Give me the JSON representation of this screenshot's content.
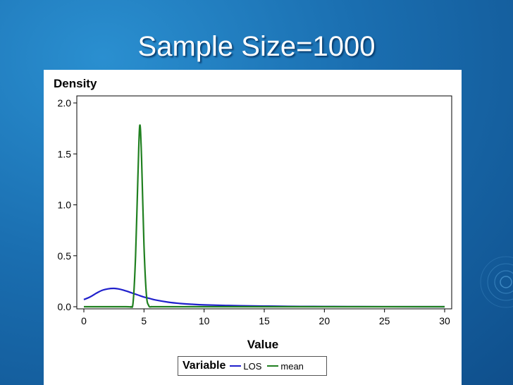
{
  "slide": {
    "title": "Sample Size=1000"
  },
  "chart_data": {
    "type": "line",
    "title": "",
    "ylabel": "Density",
    "xlabel": "Value",
    "xlim": [
      0,
      30
    ],
    "ylim": [
      0,
      2.0
    ],
    "xticks": [
      "0",
      "5",
      "10",
      "15",
      "20",
      "25",
      "30"
    ],
    "yticks": [
      "0.0",
      "0.5",
      "1.0",
      "1.5",
      "2.0"
    ],
    "grid": false,
    "legend_title": "Variable",
    "legend_position": "bottom",
    "series": [
      {
        "name": "LOS",
        "color": "#2020cc",
        "x": [
          0,
          0.5,
          1,
          1.5,
          2,
          2.5,
          3,
          3.5,
          4,
          4.5,
          5,
          5.5,
          6,
          7,
          8,
          9,
          10,
          12,
          14,
          16,
          18,
          20,
          22,
          25,
          28,
          30
        ],
        "y": [
          0.07,
          0.095,
          0.13,
          0.16,
          0.175,
          0.18,
          0.172,
          0.155,
          0.135,
          0.115,
          0.095,
          0.08,
          0.065,
          0.045,
          0.032,
          0.024,
          0.018,
          0.012,
          0.008,
          0.005,
          0.003,
          0.002,
          0.001,
          0.0005,
          0.0002,
          0.0001
        ]
      },
      {
        "name": "mean",
        "color": "#208020",
        "x": [
          0,
          3.5,
          3.9,
          4.1,
          4.3,
          4.5,
          4.65,
          4.8,
          5.0,
          5.2,
          5.4,
          5.6,
          6,
          10,
          20,
          30
        ],
        "y": [
          0,
          0,
          0.0,
          0.05,
          0.5,
          1.3,
          1.78,
          1.45,
          0.6,
          0.12,
          0.01,
          0.0,
          0,
          0,
          0,
          0
        ]
      }
    ]
  }
}
